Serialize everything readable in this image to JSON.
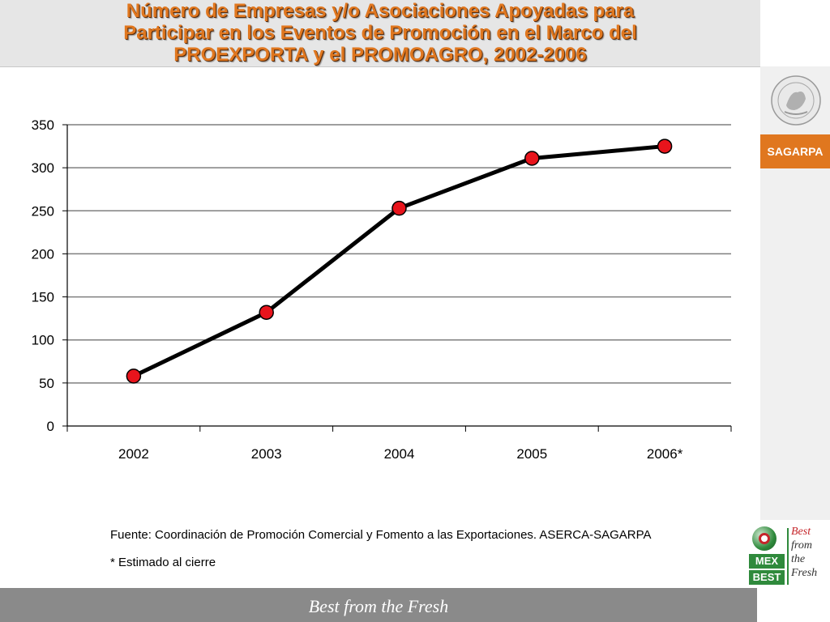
{
  "slide": {
    "title_lines": [
      "Número de Empresas y/o Asociaciones Apoyadas para",
      "Participar en los Eventos de Promoción en el Marco del",
      "PROEXPORTA y el PROMOAGRO, 2002-2006"
    ],
    "brand_label": "SAGARPA",
    "source_note": "Fuente: Coordinación de Promoción Comercial y Fomento a las Exportaciones. ASERCA-SAGARPA",
    "footnote": "* Estimado al cierre",
    "footer_text": "Best from the Fresh",
    "logo": {
      "word1": "MEX",
      "word2": "BEST",
      "tag_lines": [
        "Best",
        "from",
        "the",
        "Fresh"
      ]
    },
    "colors": {
      "title": "#e0771f",
      "brand": "#e0771f",
      "line": "#000000",
      "marker": "#e8141c",
      "grid": "#7f7f7f",
      "footer": "#8a8a8a"
    },
    "icons": [
      "national-seal-icon",
      "mexbest-logo-icon"
    ]
  },
  "chart_data": {
    "type": "line",
    "categories": [
      "2002",
      "2003",
      "2004",
      "2005",
      "2006*"
    ],
    "series": [
      {
        "values": [
          58,
          132,
          253,
          311,
          325
        ]
      }
    ],
    "title": "",
    "xlabel": "",
    "ylabel": "",
    "ylim": [
      0,
      350
    ],
    "yticks": [
      0,
      50,
      100,
      150,
      200,
      250,
      300,
      350
    ],
    "grid": true,
    "legend": "none"
  }
}
